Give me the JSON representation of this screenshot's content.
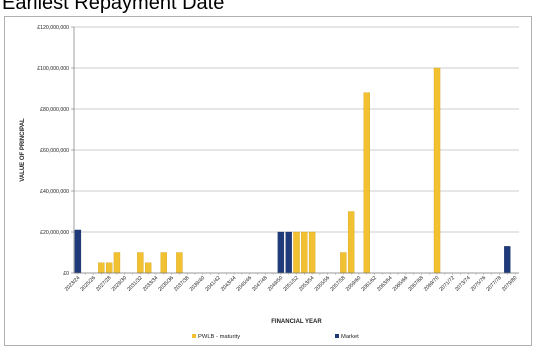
{
  "page": {
    "title": "Earliest Repayment Date"
  },
  "chart_data": {
    "type": "bar",
    "title": "",
    "xlabel": "FINANCIAL YEAR",
    "ylabel": "VALUE OF PRINCIPAL",
    "ylim": [
      0,
      120000000
    ],
    "yticks": [
      0,
      20000000,
      40000000,
      60000000,
      80000000,
      100000000,
      120000000
    ],
    "ytick_labels": [
      "£0",
      "£20,000,000",
      "£40,000,000",
      "£60,000,000",
      "£80,000,000",
      "£100,000,000",
      "£120,000,000"
    ],
    "grid": true,
    "legend_position": "bottom",
    "categories": [
      "2023/24",
      "2024/25",
      "2025/26",
      "2026/27",
      "2027/28",
      "2028/29",
      "2029/30",
      "2030/31",
      "2031/32",
      "2032/33",
      "2033/34",
      "2034/35",
      "2035/36",
      "2036/37",
      "2037/38",
      "2038/39",
      "2039/40",
      "2040/41",
      "2041/42",
      "2042/43",
      "2043/44",
      "2044/45",
      "2045/46",
      "2046/47",
      "2047/48",
      "2048/49",
      "2049/50",
      "2050/51",
      "2051/52",
      "2052/53",
      "2053/54",
      "2054/55",
      "2055/56",
      "2056/57",
      "2057/58",
      "2058/59",
      "2059/60",
      "2060/61",
      "2061/62",
      "2062/63",
      "2063/64",
      "2064/65",
      "2065/66",
      "2066/67",
      "2067/68",
      "2068/69",
      "2069/70",
      "2070/71",
      "2071/72",
      "2072/73",
      "2073/74",
      "2074/75",
      "2075/76",
      "2076/77",
      "2077/78",
      "2078/79",
      "2079/80"
    ],
    "category_labels_shown": [
      "2023/24",
      "2025/26",
      "2027/28",
      "2029/30",
      "2031/32",
      "2033/34",
      "2035/36",
      "2037/38",
      "2039/40",
      "2041/42",
      "2043/44",
      "2045/46",
      "2047/48",
      "2049/50",
      "2051/52",
      "2053/54",
      "2055/56",
      "2057/58",
      "2059/60",
      "2061/62",
      "2063/64",
      "2065/66",
      "2067/68",
      "2069/70",
      "2071/72",
      "2073/74",
      "2075/76",
      "2077/78",
      "2079/80"
    ],
    "series": [
      {
        "name": "PWLB - maturity",
        "color": "#F2C132",
        "values": [
          0,
          0,
          0,
          5000000,
          5000000,
          10000000,
          0,
          0,
          10000000,
          5000000,
          0,
          10000000,
          0,
          10000000,
          0,
          0,
          0,
          0,
          0,
          0,
          0,
          0,
          0,
          0,
          0,
          0,
          0,
          0,
          20000000,
          20000000,
          20000000,
          0,
          0,
          0,
          10000000,
          30000000,
          0,
          88000000,
          0,
          0,
          0,
          0,
          0,
          0,
          0,
          0,
          100000000,
          0,
          0,
          0,
          0,
          0,
          0,
          0,
          0,
          0,
          0
        ]
      },
      {
        "name": "Market",
        "color": "#1F3A7A",
        "values": [
          21000000,
          0,
          0,
          0,
          0,
          0,
          0,
          0,
          0,
          0,
          0,
          0,
          0,
          0,
          0,
          0,
          0,
          0,
          0,
          0,
          0,
          0,
          0,
          0,
          0,
          0,
          20000000,
          20000000,
          0,
          0,
          0,
          0,
          0,
          0,
          0,
          0,
          0,
          0,
          0,
          0,
          0,
          0,
          0,
          0,
          0,
          0,
          0,
          0,
          0,
          0,
          0,
          0,
          0,
          0,
          0,
          13000000,
          0
        ]
      }
    ]
  }
}
